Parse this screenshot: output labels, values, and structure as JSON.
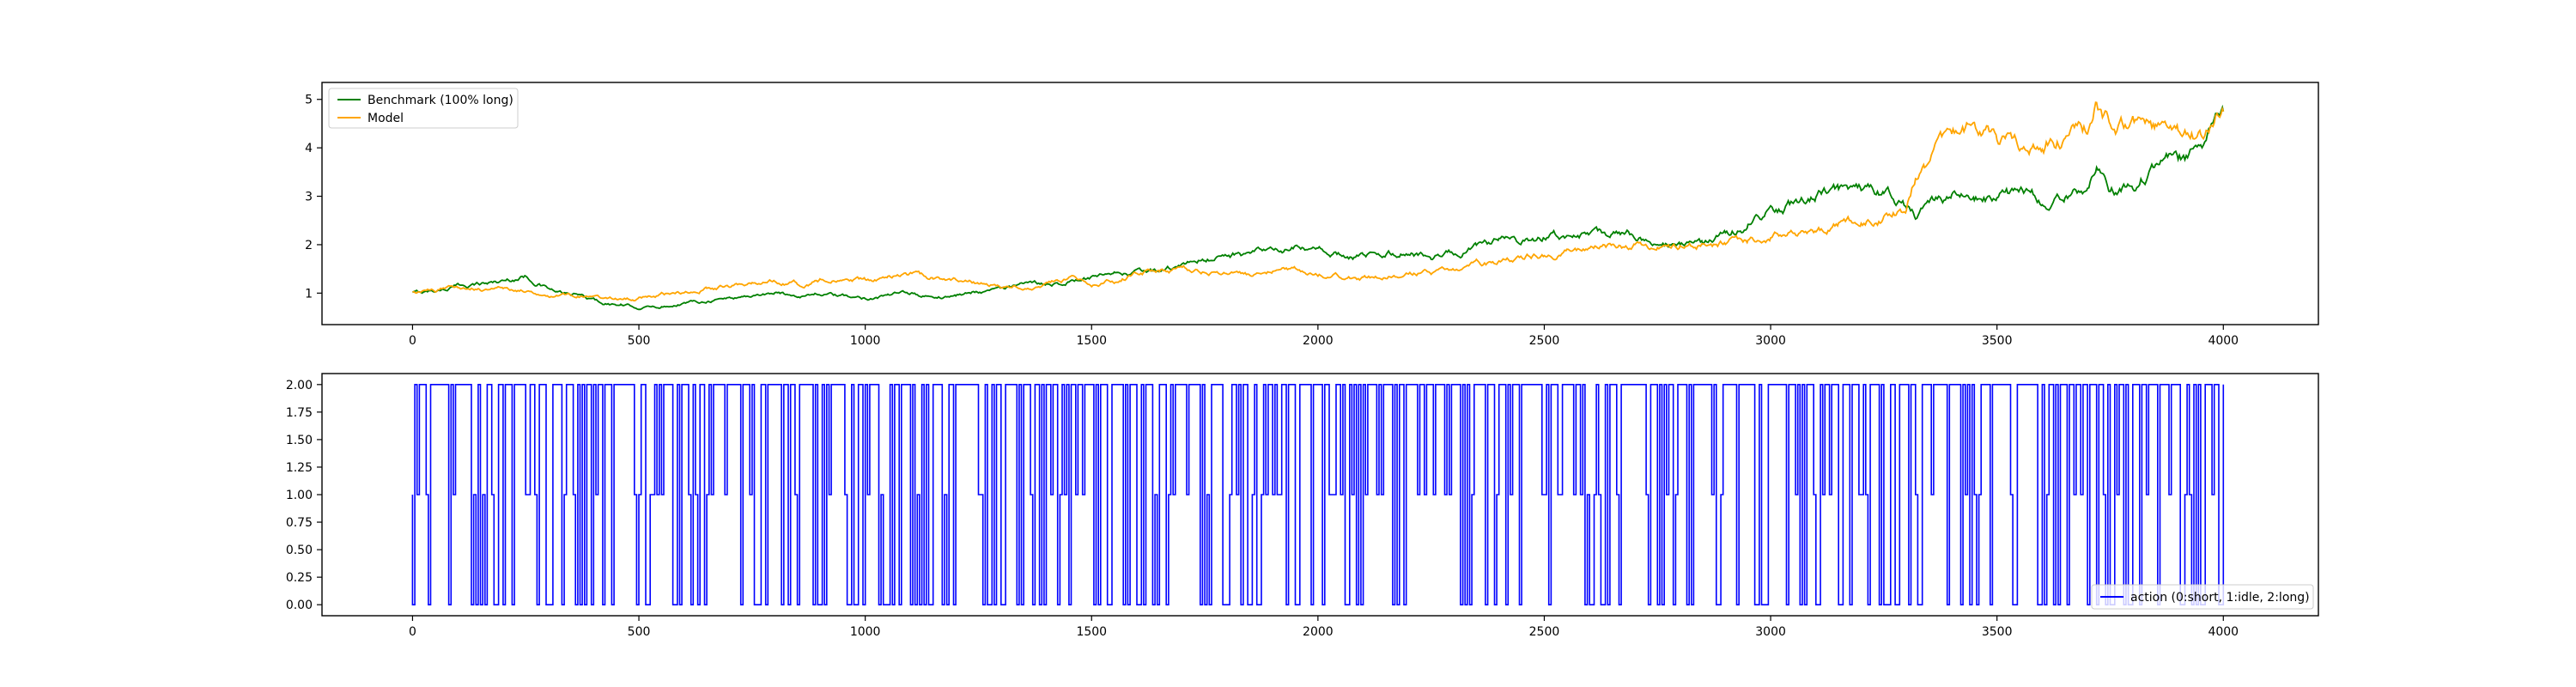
{
  "chart_data": [
    {
      "type": "line",
      "title": "",
      "xlabel": "",
      "ylabel": "",
      "xlim": [
        -200,
        4210
      ],
      "ylim": [
        0.35,
        5.35
      ],
      "xticks": [
        0,
        500,
        1000,
        1500,
        2000,
        2500,
        3000,
        3500,
        4000
      ],
      "xtick_labels": [
        "0",
        "500",
        "1000",
        "1500",
        "2000",
        "2500",
        "3000",
        "3500",
        "4000"
      ],
      "yticks": [
        1,
        2,
        3,
        4,
        5
      ],
      "ytick_labels": [
        "1",
        "2",
        "3",
        "4",
        "5"
      ],
      "legend": {
        "placement": "upper-left"
      },
      "grid": false,
      "series": [
        {
          "name": "Benchmark (100% long)",
          "color": "#008000",
          "x": [
            0,
            50,
            100,
            150,
            200,
            250,
            280,
            320,
            370,
            420,
            460,
            500,
            550,
            600,
            650,
            700,
            750,
            800,
            850,
            900,
            950,
            1000,
            1050,
            1100,
            1150,
            1200,
            1250,
            1300,
            1350,
            1400,
            1450,
            1500,
            1550,
            1600,
            1650,
            1700,
            1750,
            1800,
            1850,
            1900,
            1950,
            2000,
            2050,
            2100,
            2150,
            2200,
            2250,
            2300,
            2350,
            2400,
            2450,
            2500,
            2550,
            2600,
            2650,
            2700,
            2750,
            2800,
            2850,
            2900,
            2950,
            3000,
            3050,
            3100,
            3150,
            3200,
            3250,
            3300,
            3320,
            3350,
            3400,
            3450,
            3500,
            3550,
            3600,
            3650,
            3700,
            3720,
            3750,
            3800,
            3850,
            3900,
            3950,
            4000
          ],
          "values": [
            1.0,
            1.05,
            1.15,
            1.2,
            1.25,
            1.35,
            1.2,
            1.0,
            0.95,
            0.8,
            0.75,
            0.7,
            0.72,
            0.8,
            0.85,
            0.9,
            0.95,
            1.0,
            0.95,
            1.0,
            0.92,
            0.9,
            0.95,
            1.0,
            0.9,
            0.95,
            1.05,
            1.1,
            1.15,
            1.2,
            1.25,
            1.3,
            1.35,
            1.4,
            1.45,
            1.55,
            1.7,
            1.8,
            1.8,
            1.85,
            1.9,
            1.85,
            1.8,
            1.75,
            1.8,
            1.85,
            1.75,
            1.85,
            1.95,
            2.05,
            2.05,
            2.15,
            2.2,
            2.15,
            2.2,
            2.2,
            2.1,
            1.95,
            2.0,
            2.2,
            2.4,
            2.75,
            2.85,
            3.0,
            3.1,
            3.2,
            3.1,
            2.8,
            2.6,
            2.9,
            2.95,
            3.0,
            2.95,
            3.05,
            2.95,
            3.0,
            3.1,
            3.5,
            3.1,
            3.2,
            3.6,
            3.8,
            3.9,
            4.75
          ]
        },
        {
          "name": "Model",
          "color": "#ffa500",
          "x": [
            0,
            50,
            100,
            150,
            200,
            250,
            300,
            350,
            400,
            450,
            500,
            550,
            600,
            650,
            700,
            750,
            800,
            850,
            900,
            950,
            1000,
            1050,
            1100,
            1150,
            1200,
            1250,
            1300,
            1350,
            1400,
            1450,
            1500,
            1550,
            1600,
            1650,
            1700,
            1750,
            1800,
            1850,
            1900,
            1950,
            2000,
            2050,
            2100,
            2150,
            2200,
            2250,
            2300,
            2350,
            2400,
            2450,
            2500,
            2550,
            2600,
            2650,
            2700,
            2750,
            2800,
            2850,
            2900,
            2950,
            3000,
            3050,
            3100,
            3150,
            3200,
            3250,
            3300,
            3320,
            3340,
            3360,
            3400,
            3450,
            3500,
            3550,
            3600,
            3650,
            3700,
            3720,
            3730,
            3750,
            3800,
            3850,
            3900,
            3950,
            4000
          ],
          "values": [
            1.0,
            1.05,
            1.15,
            1.1,
            1.1,
            1.05,
            1.0,
            0.95,
            0.9,
            0.88,
            0.9,
            0.95,
            1.0,
            1.1,
            1.15,
            1.2,
            1.25,
            1.2,
            1.25,
            1.25,
            1.25,
            1.3,
            1.35,
            1.3,
            1.3,
            1.2,
            1.15,
            1.15,
            1.2,
            1.3,
            1.2,
            1.25,
            1.4,
            1.5,
            1.5,
            1.45,
            1.45,
            1.4,
            1.45,
            1.5,
            1.4,
            1.35,
            1.3,
            1.35,
            1.4,
            1.45,
            1.5,
            1.6,
            1.65,
            1.75,
            1.8,
            1.85,
            1.9,
            1.95,
            2.0,
            1.95,
            1.95,
            2.0,
            2.05,
            2.1,
            2.2,
            2.25,
            2.3,
            2.4,
            2.5,
            2.6,
            2.7,
            3.4,
            3.6,
            4.0,
            4.2,
            4.4,
            4.2,
            4.0,
            4.1,
            4.2,
            4.3,
            5.0,
            4.7,
            4.5,
            4.4,
            4.3,
            4.2,
            4.25,
            4.75
          ]
        }
      ]
    },
    {
      "type": "line",
      "title": "",
      "xlabel": "",
      "ylabel": "",
      "xlim": [
        -200,
        4210
      ],
      "ylim": [
        -0.1,
        2.1
      ],
      "xticks": [
        0,
        500,
        1000,
        1500,
        2000,
        2500,
        3000,
        3500,
        4000
      ],
      "xtick_labels": [
        "0",
        "500",
        "1000",
        "1500",
        "2000",
        "2500",
        "3000",
        "3500",
        "4000"
      ],
      "yticks": [
        0.0,
        0.25,
        0.5,
        0.75,
        1.0,
        1.25,
        1.5,
        1.75,
        2.0
      ],
      "ytick_labels": [
        "0.00",
        "0.25",
        "0.50",
        "0.75",
        "1.00",
        "1.25",
        "1.50",
        "1.75",
        "2.00"
      ],
      "legend": {
        "placement": "lower-right"
      },
      "grid": false,
      "series": [
        {
          "name": "action (0:short, 1:idle, 2:long)",
          "color": "#0000ff",
          "levels": [
            0,
            1,
            2
          ],
          "x_range": [
            0,
            4000
          ],
          "step": 5,
          "seed": 12345,
          "weights": [
            0.25,
            0.15,
            0.6
          ]
        }
      ]
    }
  ]
}
